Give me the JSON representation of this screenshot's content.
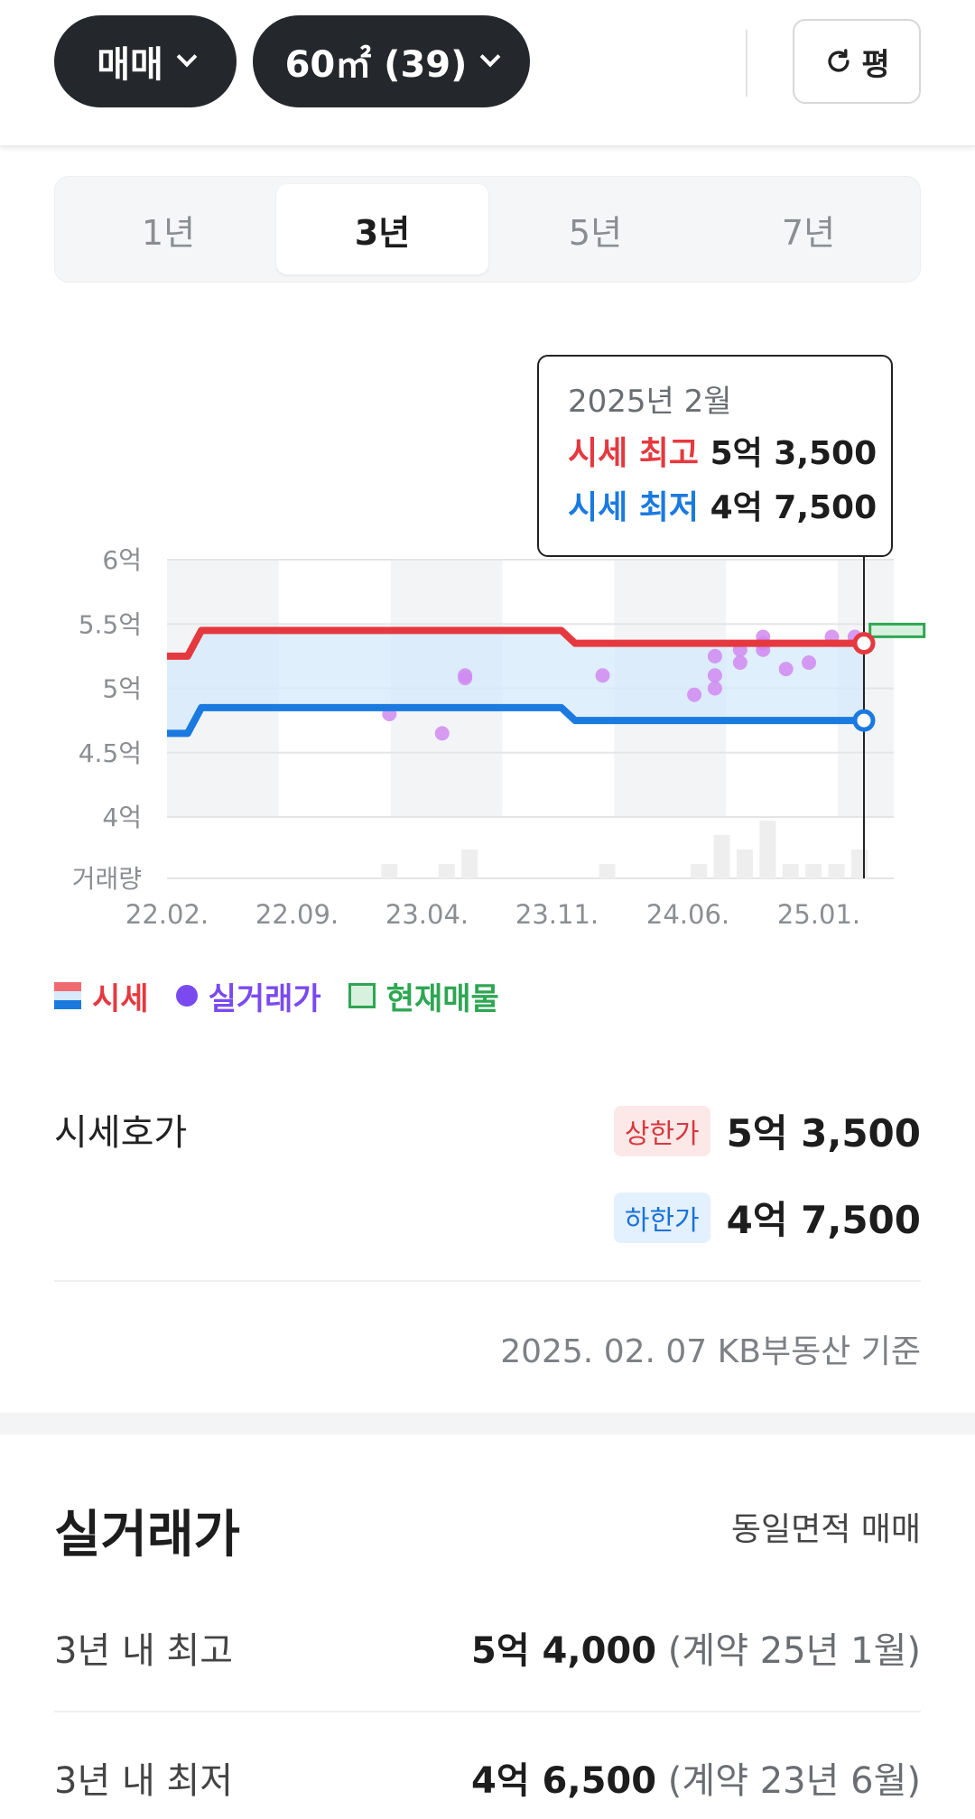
{
  "filters": {
    "trade_type": "매매",
    "area": "60㎡ (39)",
    "unit_toggle": "평"
  },
  "period_tabs": [
    {
      "label": "1년",
      "active": false
    },
    {
      "label": "3년",
      "active": true
    },
    {
      "label": "5년",
      "active": false
    },
    {
      "label": "7년",
      "active": false
    }
  ],
  "tooltip": {
    "date": "2025년 2월",
    "high_label": "시세 최고",
    "high_value": "5억 3,500",
    "low_label": "시세 최저",
    "low_value": "4억 7,500"
  },
  "chart_data": {
    "type": "line",
    "y_tick_labels": [
      "6억",
      "5.5억",
      "5억",
      "4.5억",
      "4억",
      "거래량"
    ],
    "x_tick_labels": [
      "22.02.",
      "22.09.",
      "23.04.",
      "23.11.",
      "24.06.",
      "25.01."
    ],
    "ylim": [
      4.0,
      6.0
    ],
    "series": [
      {
        "name": "시세 상한",
        "color": "#e5393f",
        "points": [
          [
            2022.08,
            5.25
          ],
          [
            2022.17,
            5.25
          ],
          [
            2022.23,
            5.45
          ],
          [
            2023.8,
            5.45
          ],
          [
            2023.86,
            5.35
          ],
          [
            2025.12,
            5.35
          ]
        ]
      },
      {
        "name": "시세 하한",
        "color": "#1a7ae0",
        "points": [
          [
            2022.08,
            4.65
          ],
          [
            2022.17,
            4.65
          ],
          [
            2022.23,
            4.85
          ],
          [
            2023.8,
            4.85
          ],
          [
            2023.86,
            4.75
          ],
          [
            2025.12,
            4.75
          ]
        ]
      }
    ],
    "transactions": [
      [
        2023.05,
        4.8
      ],
      [
        2023.28,
        4.65
      ],
      [
        2023.38,
        5.1
      ],
      [
        2023.38,
        5.08
      ],
      [
        2023.98,
        5.1
      ],
      [
        2024.38,
        4.95
      ],
      [
        2024.47,
        5.25
      ],
      [
        2024.47,
        5.1
      ],
      [
        2024.47,
        5.0
      ],
      [
        2024.58,
        5.2
      ],
      [
        2024.58,
        5.3
      ],
      [
        2024.68,
        5.35
      ],
      [
        2024.68,
        5.3
      ],
      [
        2024.68,
        5.4
      ],
      [
        2024.78,
        5.15
      ],
      [
        2024.88,
        5.2
      ],
      [
        2024.98,
        5.4
      ],
      [
        2025.08,
        5.4
      ]
    ],
    "volume": [
      [
        2023.05,
        1
      ],
      [
        2023.3,
        1
      ],
      [
        2023.4,
        2
      ],
      [
        2024.0,
        1
      ],
      [
        2024.4,
        1
      ],
      [
        2024.5,
        3
      ],
      [
        2024.6,
        2
      ],
      [
        2024.7,
        4
      ],
      [
        2024.8,
        1
      ],
      [
        2024.9,
        1
      ],
      [
        2025.0,
        1
      ],
      [
        2025.1,
        2
      ]
    ],
    "current_listing": {
      "x": 2025.17,
      "y": 5.45
    },
    "selected_x": 2025.12,
    "colors": {
      "band": "#d6eafb",
      "dot": "#d08af0",
      "volume": "#eeeeee",
      "listing": "#2ea653"
    }
  },
  "legend": [
    {
      "label": "시세",
      "color": "#e5393f"
    },
    {
      "label": "실거래가",
      "color": "#7a4af0"
    },
    {
      "label": "현재매물",
      "color": "#2ea653"
    }
  ],
  "asking": {
    "title": "시세호가",
    "upper_label": "상한가",
    "upper_value": "5억 3,500",
    "lower_label": "하한가",
    "lower_value": "4억 7,500",
    "source": "2025. 02. 07 KB부동산 기준"
  },
  "real": {
    "title": "실거래가",
    "subtitle": "동일면적 매매",
    "rows": [
      {
        "label": "3년 내 최고",
        "value": "5억 4,000",
        "contract": "(계약 25년 1월)"
      },
      {
        "label": "3년 내 최저",
        "value": "4억 6,500",
        "contract": "(계약 23년 6월)"
      }
    ]
  }
}
